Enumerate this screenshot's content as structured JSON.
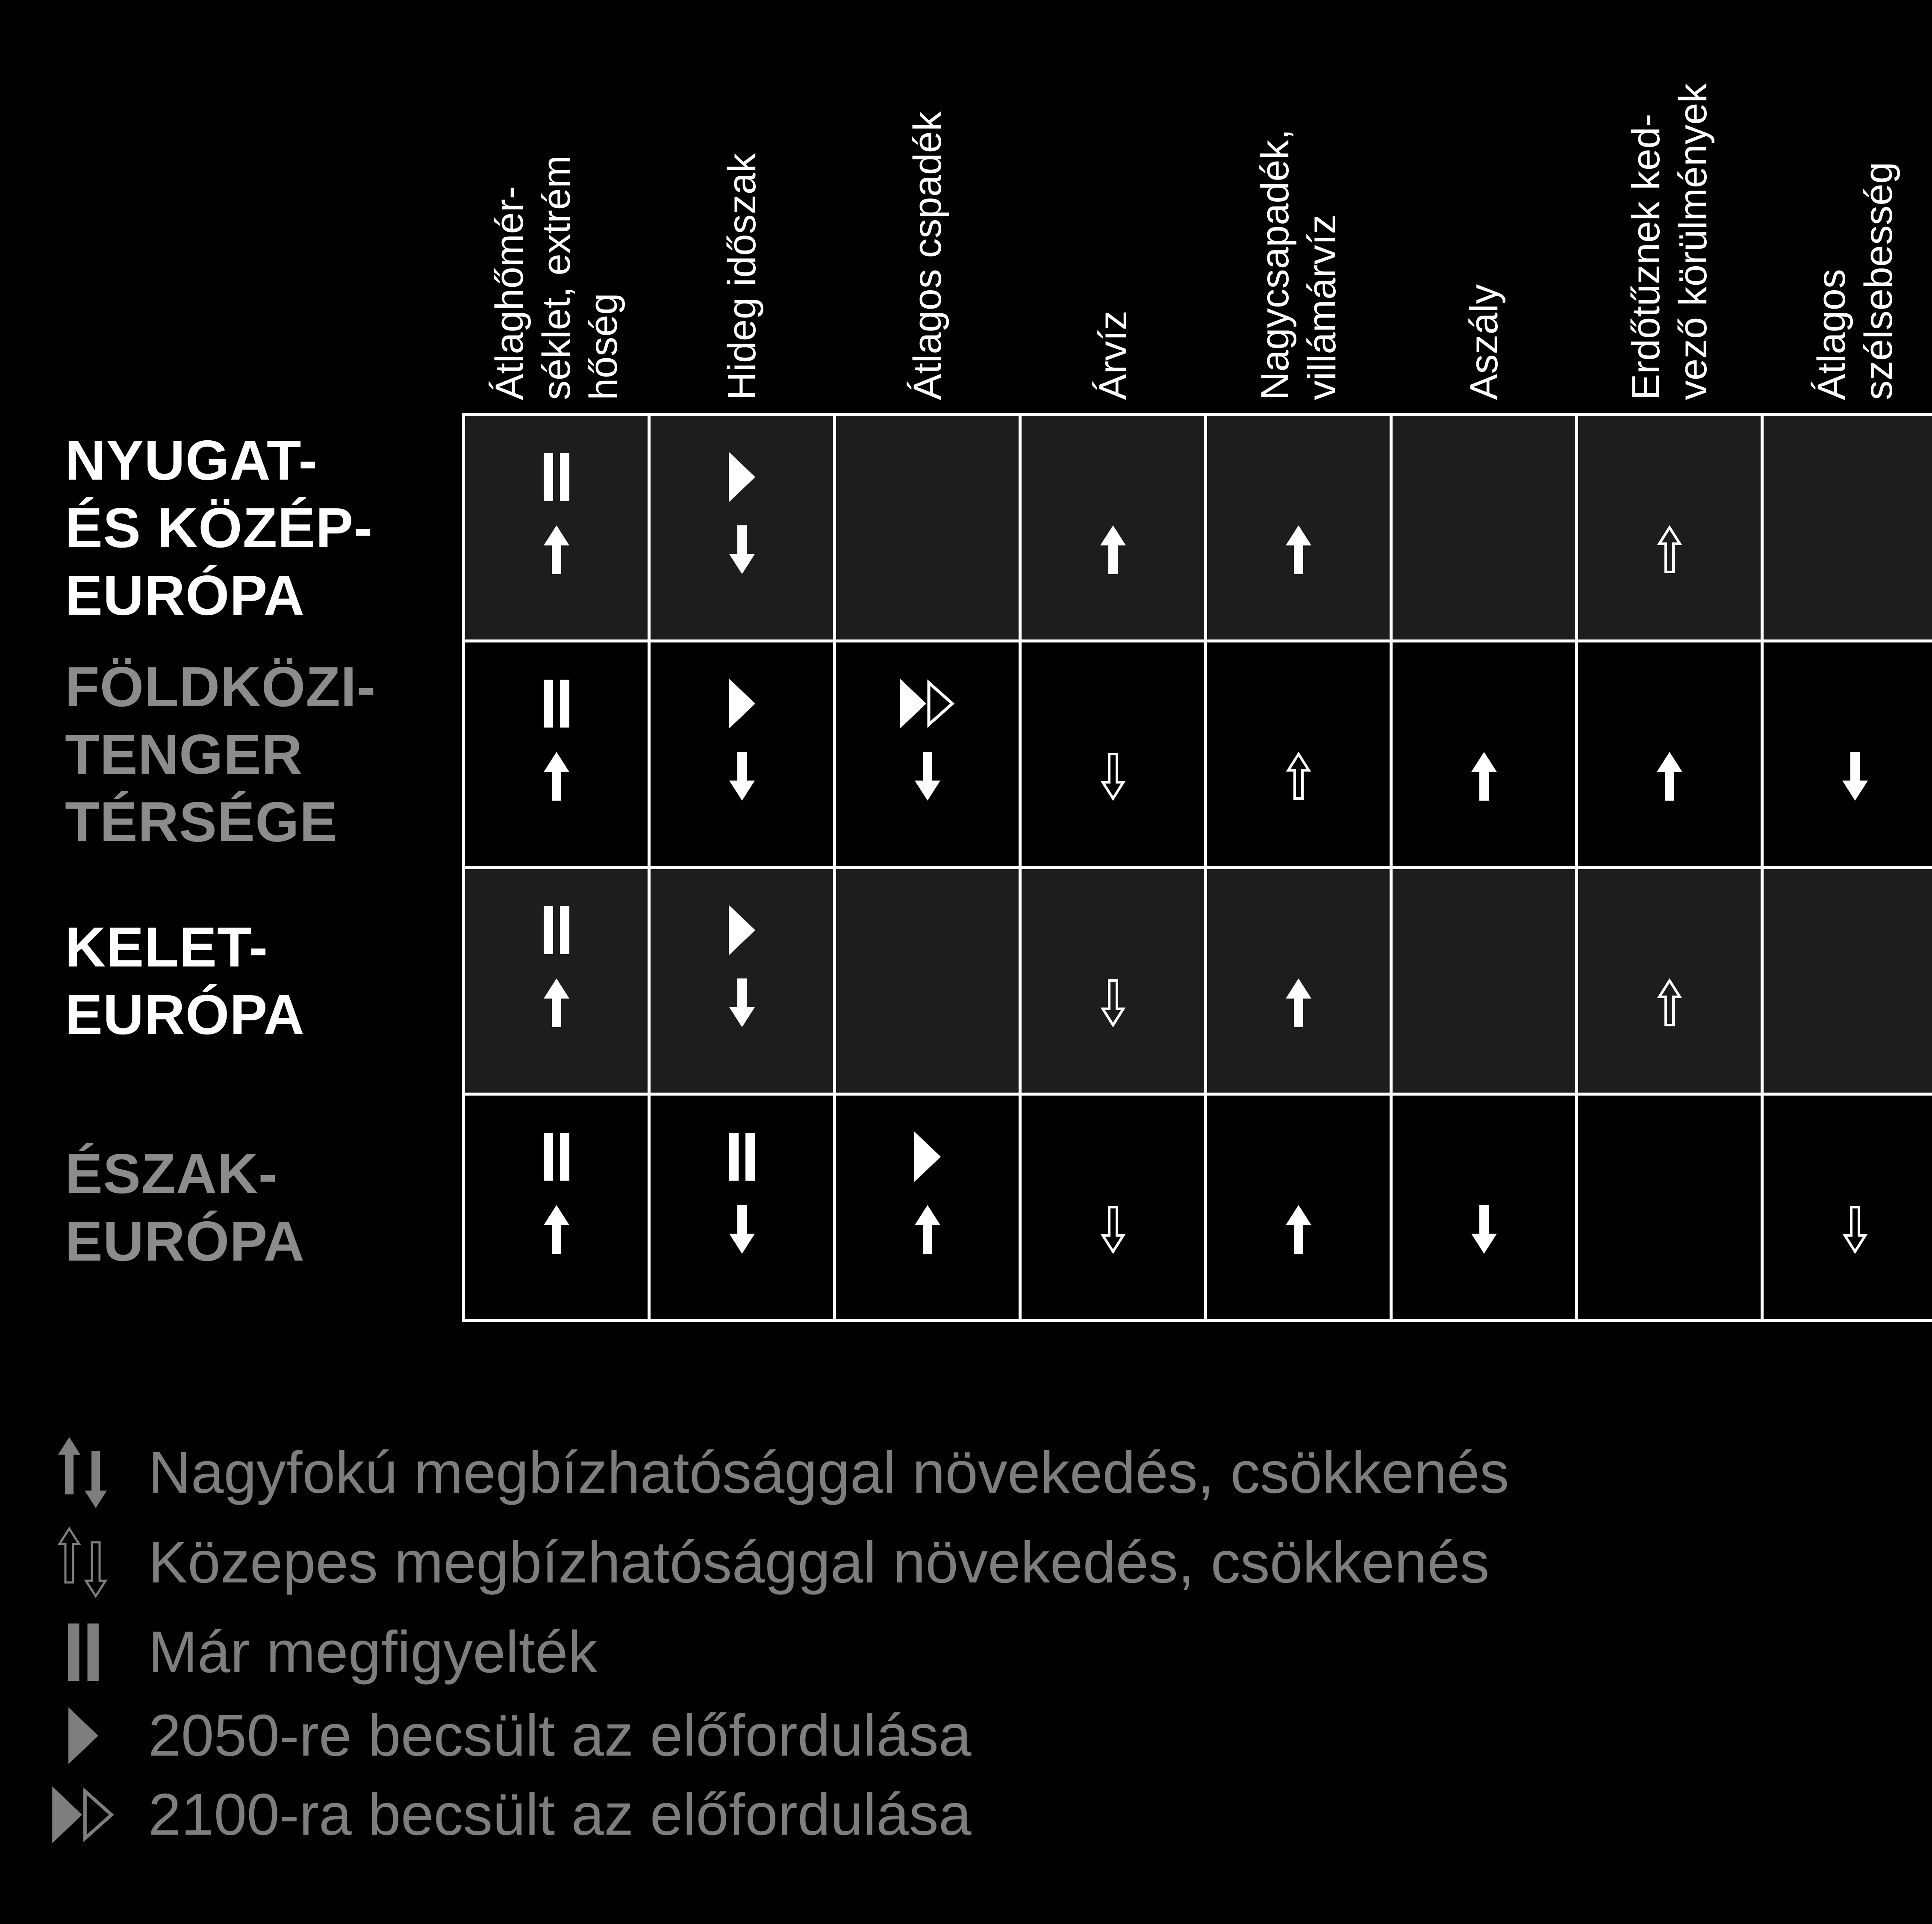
{
  "colors": {
    "page_bg": "#000000",
    "border": "#ffffff",
    "cell_bg_odd_rows": "#1d1d1d",
    "cell_bg_even_rows": "#000000",
    "icon_white": "#ffffff",
    "row_label_white": "#ffffff",
    "row_label_gray": "#8c8c8c",
    "legend_gray": "#7e7e7e"
  },
  "table": {
    "columns": [
      {
        "id": "atlaghomerseklet-extrem-hoseg",
        "label_lines": [
          "Átlaghőmér-",
          "séklet, extrém",
          "hőség"
        ]
      },
      {
        "id": "hideg-idoszak",
        "label_lines": [
          "Hideg időszak"
        ]
      },
      {
        "id": "atlagos-csapadek",
        "label_lines": [
          "Átlagos cspadék"
        ]
      },
      {
        "id": "arviz",
        "label_lines": [
          "Árvíz"
        ]
      },
      {
        "id": "nagycsapadek-villamarviz",
        "label_lines": [
          "Nagycsapadék,",
          "villámárvíz"
        ]
      },
      {
        "id": "aszaly",
        "label_lines": [
          "Aszály"
        ]
      },
      {
        "id": "erdotuz-kedvezo-korulmenyek",
        "label_lines": [
          "Erdőtűznek ked-",
          "vező körülmények"
        ]
      },
      {
        "id": "atlagos-szelsebesseg",
        "label_lines": [
          "Átlagos",
          "szélsebesség"
        ]
      }
    ],
    "rows": [
      {
        "id": "nyugat-es-kozep-europa",
        "label_lines": [
          "NYUGAT-",
          "ÉS KÖZÉP-",
          "EURÓPA"
        ],
        "label_color": "#ffffff",
        "cells": [
          {
            "status": "observed",
            "trend": "up",
            "confidence": "high"
          },
          {
            "status": "estimated-2050",
            "trend": "down",
            "confidence": "high"
          },
          {
            "status": null,
            "trend": null,
            "confidence": null
          },
          {
            "status": null,
            "trend": "up",
            "confidence": "high"
          },
          {
            "status": null,
            "trend": "up",
            "confidence": "high"
          },
          {
            "status": null,
            "trend": null,
            "confidence": null
          },
          {
            "status": null,
            "trend": "up",
            "confidence": "medium"
          },
          {
            "status": null,
            "trend": null,
            "confidence": null
          }
        ]
      },
      {
        "id": "foldkozi-tenger-tersege",
        "label_lines": [
          "FÖLDKÖZI-",
          "TENGER",
          "TÉRSÉGE"
        ],
        "label_color": "#8c8c8c",
        "cells": [
          {
            "status": "observed",
            "trend": "up",
            "confidence": "high"
          },
          {
            "status": "estimated-2050",
            "trend": "down",
            "confidence": "high"
          },
          {
            "status": "estimated-2100",
            "trend": "down",
            "confidence": "high"
          },
          {
            "status": null,
            "trend": "down",
            "confidence": "medium"
          },
          {
            "status": null,
            "trend": "up",
            "confidence": "medium"
          },
          {
            "status": null,
            "trend": "up",
            "confidence": "high"
          },
          {
            "status": null,
            "trend": "up",
            "confidence": "high"
          },
          {
            "status": null,
            "trend": "down",
            "confidence": "high"
          }
        ]
      },
      {
        "id": "kelet-europa",
        "label_lines": [
          "KELET-",
          "EURÓPA"
        ],
        "label_color": "#ffffff",
        "cells": [
          {
            "status": "observed",
            "trend": "up",
            "confidence": "high"
          },
          {
            "status": "estimated-2050",
            "trend": "down",
            "confidence": "high"
          },
          {
            "status": null,
            "trend": null,
            "confidence": null
          },
          {
            "status": null,
            "trend": "down",
            "confidence": "medium"
          },
          {
            "status": null,
            "trend": "up",
            "confidence": "high"
          },
          {
            "status": null,
            "trend": null,
            "confidence": null
          },
          {
            "status": null,
            "trend": "up",
            "confidence": "medium"
          },
          {
            "status": null,
            "trend": null,
            "confidence": null
          }
        ]
      },
      {
        "id": "eszak-europa",
        "label_lines": [
          "ÉSZAK-",
          "EURÓPA"
        ],
        "label_color": "#8c8c8c",
        "cells": [
          {
            "status": "observed",
            "trend": "up",
            "confidence": "high"
          },
          {
            "status": "observed",
            "trend": "down",
            "confidence": "high"
          },
          {
            "status": "estimated-2050",
            "trend": "up",
            "confidence": "high"
          },
          {
            "status": null,
            "trend": "down",
            "confidence": "medium"
          },
          {
            "status": null,
            "trend": "up",
            "confidence": "high"
          },
          {
            "status": null,
            "trend": "down",
            "confidence": "high"
          },
          {
            "status": null,
            "trend": null,
            "confidence": null
          },
          {
            "status": null,
            "trend": "down",
            "confidence": "medium"
          }
        ]
      }
    ]
  },
  "legend": {
    "items": [
      {
        "icon": "arrows-filled-up-down-icon",
        "label": "Nagyfokú megbízhatósággal növekedés, csökkenés"
      },
      {
        "icon": "arrows-outline-up-down-icon",
        "label": "Közepes megbízhatósággal növekedés, csökkenés"
      },
      {
        "icon": "pause-icon",
        "label": "Már megfigyelték"
      },
      {
        "icon": "play-icon",
        "label": "2050-re becsült az előfordulása"
      },
      {
        "icon": "fast-forward-icon",
        "label": "2100-ra becsült az előfordulása"
      }
    ]
  },
  "chart_data": {
    "type": "table",
    "title": "",
    "columns": [
      "Átlaghőmérséklet, extrém hőség",
      "Hideg időszak",
      "Átlagos cspadék",
      "Árvíz",
      "Nagycsapadék, villámárvíz",
      "Aszály",
      "Erdőtűznek kedvező körülmények",
      "Átlagos szélsebesség"
    ],
    "rows": [
      "NYUGAT- ÉS KÖZÉP-EURÓPA",
      "FÖLDKÖZI-TENGER TÉRSÉGE",
      "KELET-EURÓPA",
      "ÉSZAK-EURÓPA"
    ],
    "cells": [
      [
        "observed + up high",
        "2050 + down high",
        "",
        "up high",
        "up high",
        "",
        "up medium",
        ""
      ],
      [
        "observed + up high",
        "2050 + down high",
        "2100 + down high",
        "down medium",
        "up medium",
        "up high",
        "up high",
        "down high"
      ],
      [
        "observed + up high",
        "2050 + down high",
        "",
        "down medium",
        "up high",
        "",
        "up medium",
        ""
      ],
      [
        "observed + up high",
        "observed + down high",
        "2050 + up high",
        "down medium",
        "up high",
        "down high",
        "",
        "down medium"
      ]
    ],
    "legend": [
      "filled up/down arrows = Nagyfokú megbízhatósággal növekedés, csökkenés",
      "outline up/down arrows = Közepes megbízhatósággal növekedés, csökkenés",
      "pause = Már megfigyelték",
      "play = 2050-re becsült az előfordulása",
      "double play = 2100-ra becsült az előfordulása"
    ],
    "layout": "matrix of climate-impact indicators (columns) per European region (rows); grid on; legend bottom-left"
  }
}
